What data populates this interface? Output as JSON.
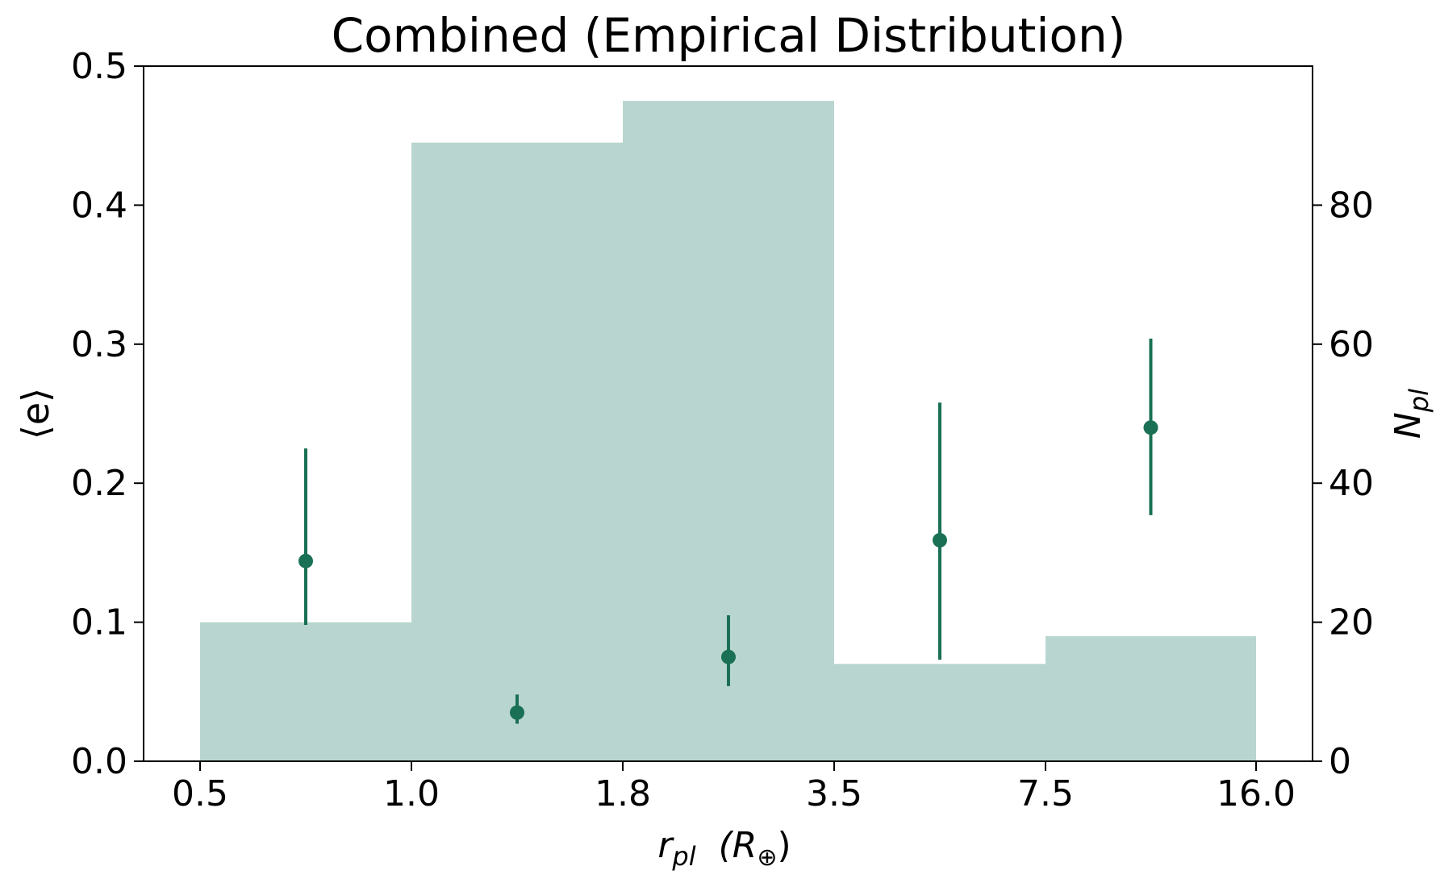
{
  "chart_data": {
    "type": "bar",
    "title": "Combined (Empirical Distribution)",
    "xlabel_main": "r",
    "xlabel_sub": "pl",
    "xlabel_unit_open": "(R",
    "xlabel_unit_symbol": "⊕",
    "xlabel_unit_close": ")",
    "ylabel_left": "⟨e⟩",
    "ylabel_right_main": "N",
    "ylabel_right_sub": "pl",
    "x_bin_edges": [
      "0.5",
      "1.0",
      "1.8",
      "3.5",
      "7.5",
      "16.0"
    ],
    "left_axis": {
      "ylim": [
        0,
        0.5
      ],
      "ticks": [
        "0.0",
        "0.1",
        "0.2",
        "0.3",
        "0.4",
        "0.5"
      ]
    },
    "right_axis": {
      "ylim": [
        0,
        100
      ],
      "ticks": [
        "0",
        "20",
        "40",
        "60",
        "80"
      ]
    },
    "histogram": {
      "name": "N_pl",
      "axis": "right",
      "color": "#b9d5cf",
      "values": [
        20,
        89,
        95,
        14,
        18
      ]
    },
    "mean_eccentricity": {
      "name": "⟨e⟩",
      "axis": "left",
      "color": "#1a7055",
      "values": [
        0.144,
        0.035,
        0.075,
        0.159,
        0.24
      ],
      "err_low": [
        0.098,
        0.027,
        0.054,
        0.073,
        0.177
      ],
      "err_high": [
        0.225,
        0.048,
        0.105,
        0.258,
        0.304
      ]
    },
    "grid": false
  }
}
